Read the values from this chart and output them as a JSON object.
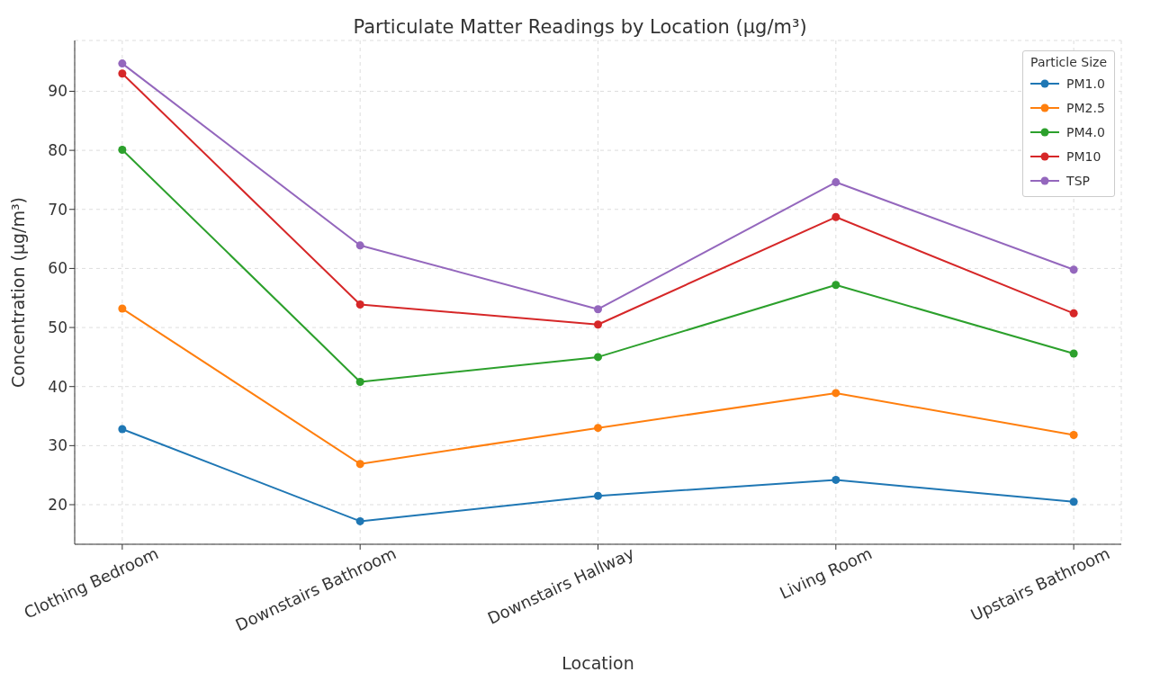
{
  "chart_data": {
    "type": "line",
    "title": "Particulate Matter Readings by Location (µg/m³)",
    "xlabel": "Location",
    "ylabel": "Concentration (µg/m³)",
    "legend_title": "Particle Size",
    "categories": [
      "Clothing Bedroom",
      "Downstairs Bathroom",
      "Downstairs Hallway",
      "Living Room",
      "Upstairs Bathroom"
    ],
    "series": [
      {
        "name": "PM1.0",
        "color": "#1f77b4",
        "values": [
          32.8,
          17.2,
          21.5,
          24.2,
          20.5
        ]
      },
      {
        "name": "PM2.5",
        "color": "#ff7f0e",
        "values": [
          53.2,
          26.9,
          33.0,
          38.9,
          31.8
        ]
      },
      {
        "name": "PM4.0",
        "color": "#2ca02c",
        "values": [
          80.1,
          40.8,
          45.0,
          57.2,
          45.6
        ]
      },
      {
        "name": "PM10",
        "color": "#d62728",
        "values": [
          93.0,
          53.9,
          50.5,
          68.7,
          52.4
        ]
      },
      {
        "name": "TSP",
        "color": "#9467bd",
        "values": [
          94.7,
          63.9,
          53.1,
          74.6,
          59.8
        ]
      }
    ],
    "ylim": [
      13.3,
      98.6
    ],
    "yticks": [
      20,
      30,
      40,
      50,
      60,
      70,
      80,
      90
    ],
    "grid": true,
    "legend": "top right",
    "marker": "circle",
    "line_style": "solid"
  }
}
